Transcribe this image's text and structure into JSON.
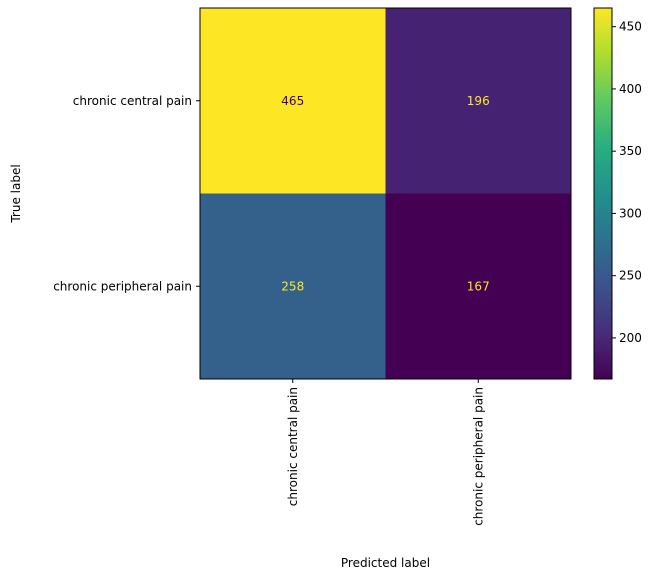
{
  "chart_data": {
    "type": "heatmap",
    "title": "",
    "xlabel": "Predicted label",
    "ylabel": "True label",
    "x_categories": [
      "chronic central pain",
      "chronic peripheral pain"
    ],
    "y_categories": [
      "chronic central pain",
      "chronic peripheral pain"
    ],
    "values": [
      [
        465,
        196
      ],
      [
        258,
        167
      ]
    ],
    "colormap": "viridis",
    "colorbar": {
      "min": 167,
      "max": 465,
      "ticks": [
        200,
        250,
        300,
        350,
        400,
        450
      ]
    },
    "grid": false,
    "text_colors": {
      "on_dark": "#fde725",
      "on_light": "#440154"
    }
  }
}
